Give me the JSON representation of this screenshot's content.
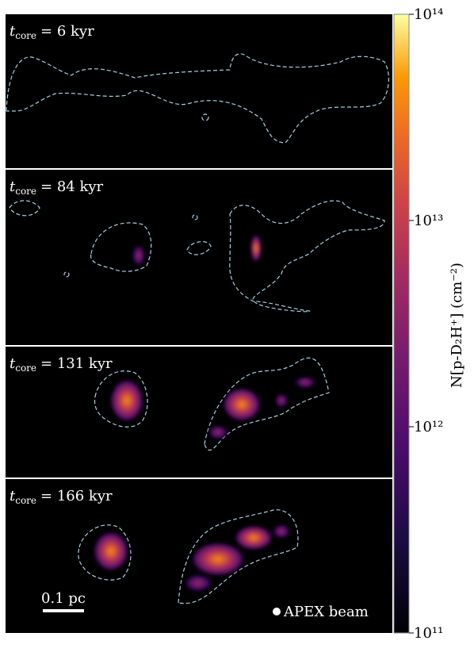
{
  "chart_data": {
    "type": "image",
    "label_symbol": "t",
    "label_subscript": "core",
    "panels": [
      {
        "label": "= 6 kyr"
      },
      {
        "label": "= 84 kyr"
      },
      {
        "label": "= 131 kyr"
      },
      {
        "label": "= 166 kyr"
      }
    ],
    "colorbar": {
      "label": "N[p-D₂H⁺] (cm⁻²)",
      "log": true,
      "ylim": [
        100000000000,
        100000000000000
      ],
      "yticks": [
        {
          "value": 100000000000,
          "label": "10¹¹"
        },
        {
          "value": 1000000000000,
          "label": "10¹²"
        },
        {
          "value": 10000000000000,
          "label": "10¹³"
        },
        {
          "value": 100000000000000,
          "label": "10¹⁴"
        }
      ]
    },
    "scalebar": "0.1 pc",
    "beam": "APEX beam"
  }
}
